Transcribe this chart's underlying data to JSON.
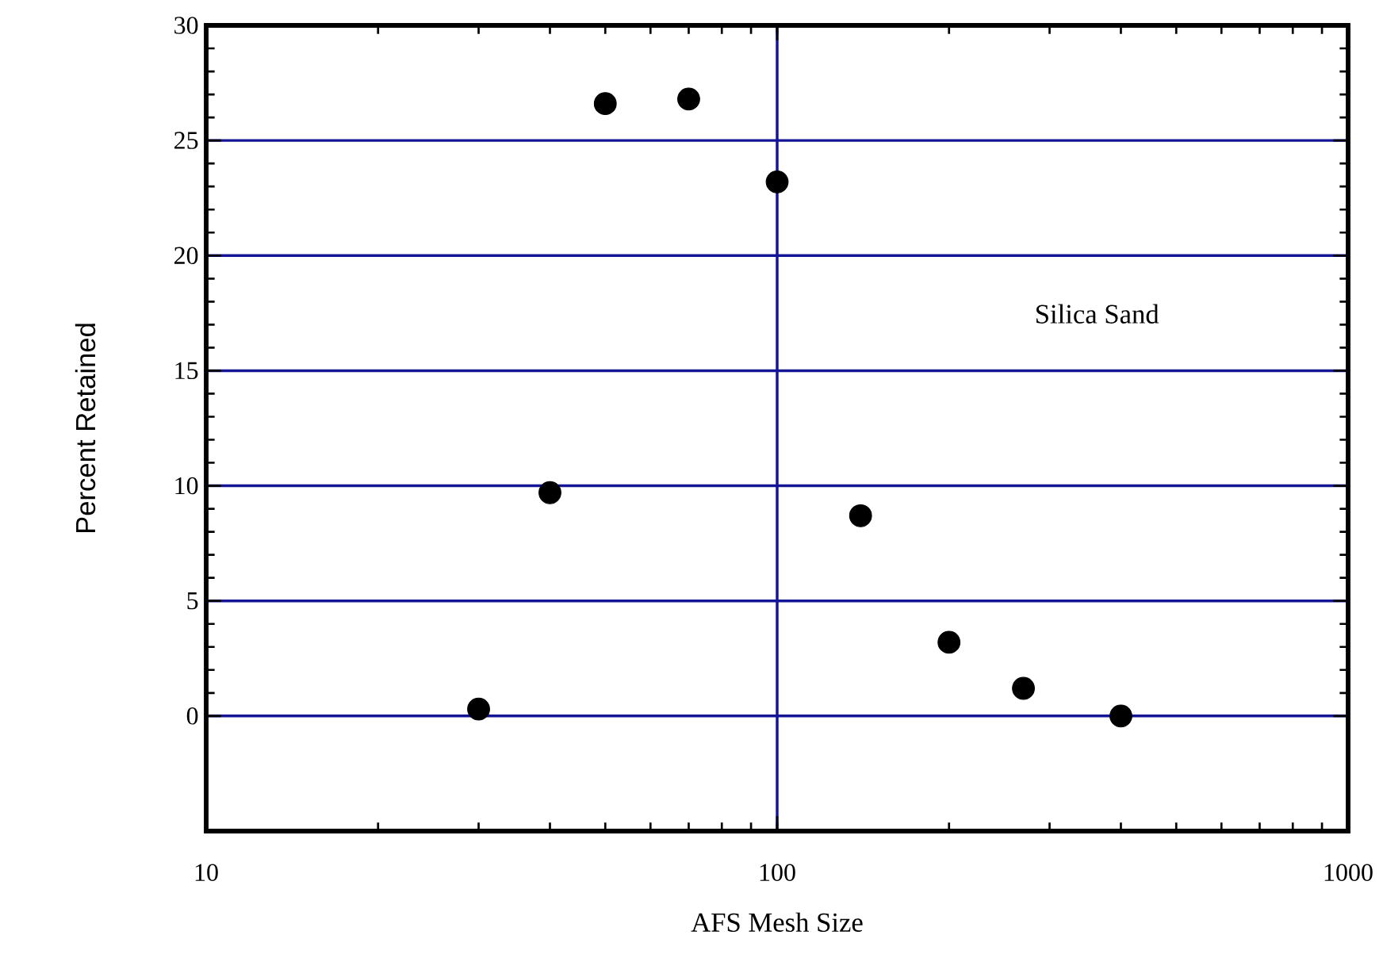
{
  "chart_data": {
    "type": "scatter",
    "xlabel": "AFS Mesh Size",
    "ylabel": "Percent Retained",
    "annotations": [
      "Silica Sand"
    ],
    "x": [
      30,
      40,
      50,
      70,
      100,
      140,
      200,
      270,
      400
    ],
    "series": [
      {
        "color": "#000000",
        "values": [
          0.3,
          9.7,
          26.6,
          26.8,
          23.2,
          8.7,
          3.2,
          1.2,
          0
        ]
      }
    ],
    "log": "x",
    "xlim": [
      10,
      1000
    ],
    "xticks": [
      10,
      100,
      1000
    ],
    "ylim": [
      -5,
      30
    ],
    "yticks": [
      0,
      5,
      10,
      15,
      20,
      25,
      30
    ],
    "grid": true,
    "marker": "circle"
  }
}
